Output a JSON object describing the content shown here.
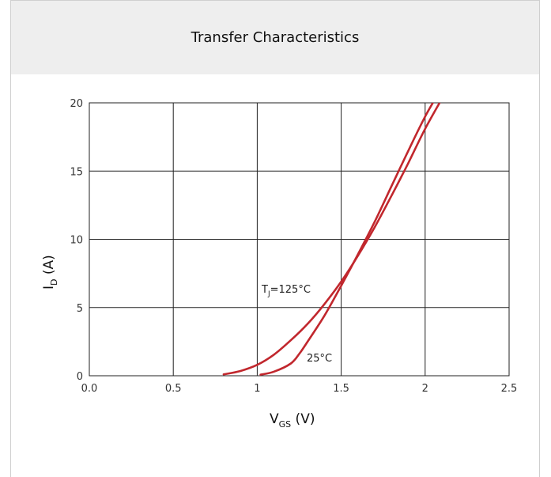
{
  "chart_data": {
    "type": "line",
    "title": "Transfer Characteristics",
    "xlabel": {
      "main": "V",
      "sub": "GS",
      "rest": " (V)"
    },
    "ylabel": {
      "main": "I",
      "sub": "D",
      "rest": " (A)"
    },
    "xlim": [
      0,
      2.5
    ],
    "ylim": [
      0,
      20
    ],
    "x_ticks": [
      0.0,
      0.5,
      1,
      1.5,
      2,
      2.5
    ],
    "x_tick_labels": [
      "0.0",
      "0.5",
      "1",
      "1.5",
      "2",
      "2.5"
    ],
    "y_ticks": [
      0,
      5,
      10,
      15,
      20
    ],
    "y_tick_labels": [
      "0",
      "5",
      "10",
      "15",
      "20"
    ],
    "grid": true,
    "series_color": "#c1272d",
    "series": [
      {
        "label_main": "T",
        "label_sub": "J",
        "label_rest": "=125°C",
        "points": [
          [
            0.8,
            0.1
          ],
          [
            0.9,
            0.35
          ],
          [
            1.0,
            0.8
          ],
          [
            1.1,
            1.55
          ],
          [
            1.2,
            2.6
          ],
          [
            1.3,
            3.8
          ],
          [
            1.4,
            5.25
          ],
          [
            1.5,
            6.9
          ],
          [
            1.6,
            8.8
          ],
          [
            1.7,
            10.9
          ],
          [
            1.8,
            13.2
          ],
          [
            1.9,
            15.6
          ],
          [
            2.0,
            18.1
          ],
          [
            2.1,
            20.3
          ]
        ]
      },
      {
        "label_main": "25°C",
        "label_sub": "",
        "label_rest": "",
        "points": [
          [
            1.02,
            0.08
          ],
          [
            1.1,
            0.3
          ],
          [
            1.2,
            0.9
          ],
          [
            1.25,
            1.6
          ],
          [
            1.3,
            2.5
          ],
          [
            1.4,
            4.4
          ],
          [
            1.5,
            6.6
          ],
          [
            1.6,
            8.9
          ],
          [
            1.7,
            11.3
          ],
          [
            1.8,
            13.9
          ],
          [
            1.9,
            16.5
          ],
          [
            2.0,
            19.0
          ],
          [
            2.07,
            20.5
          ]
        ]
      }
    ]
  }
}
